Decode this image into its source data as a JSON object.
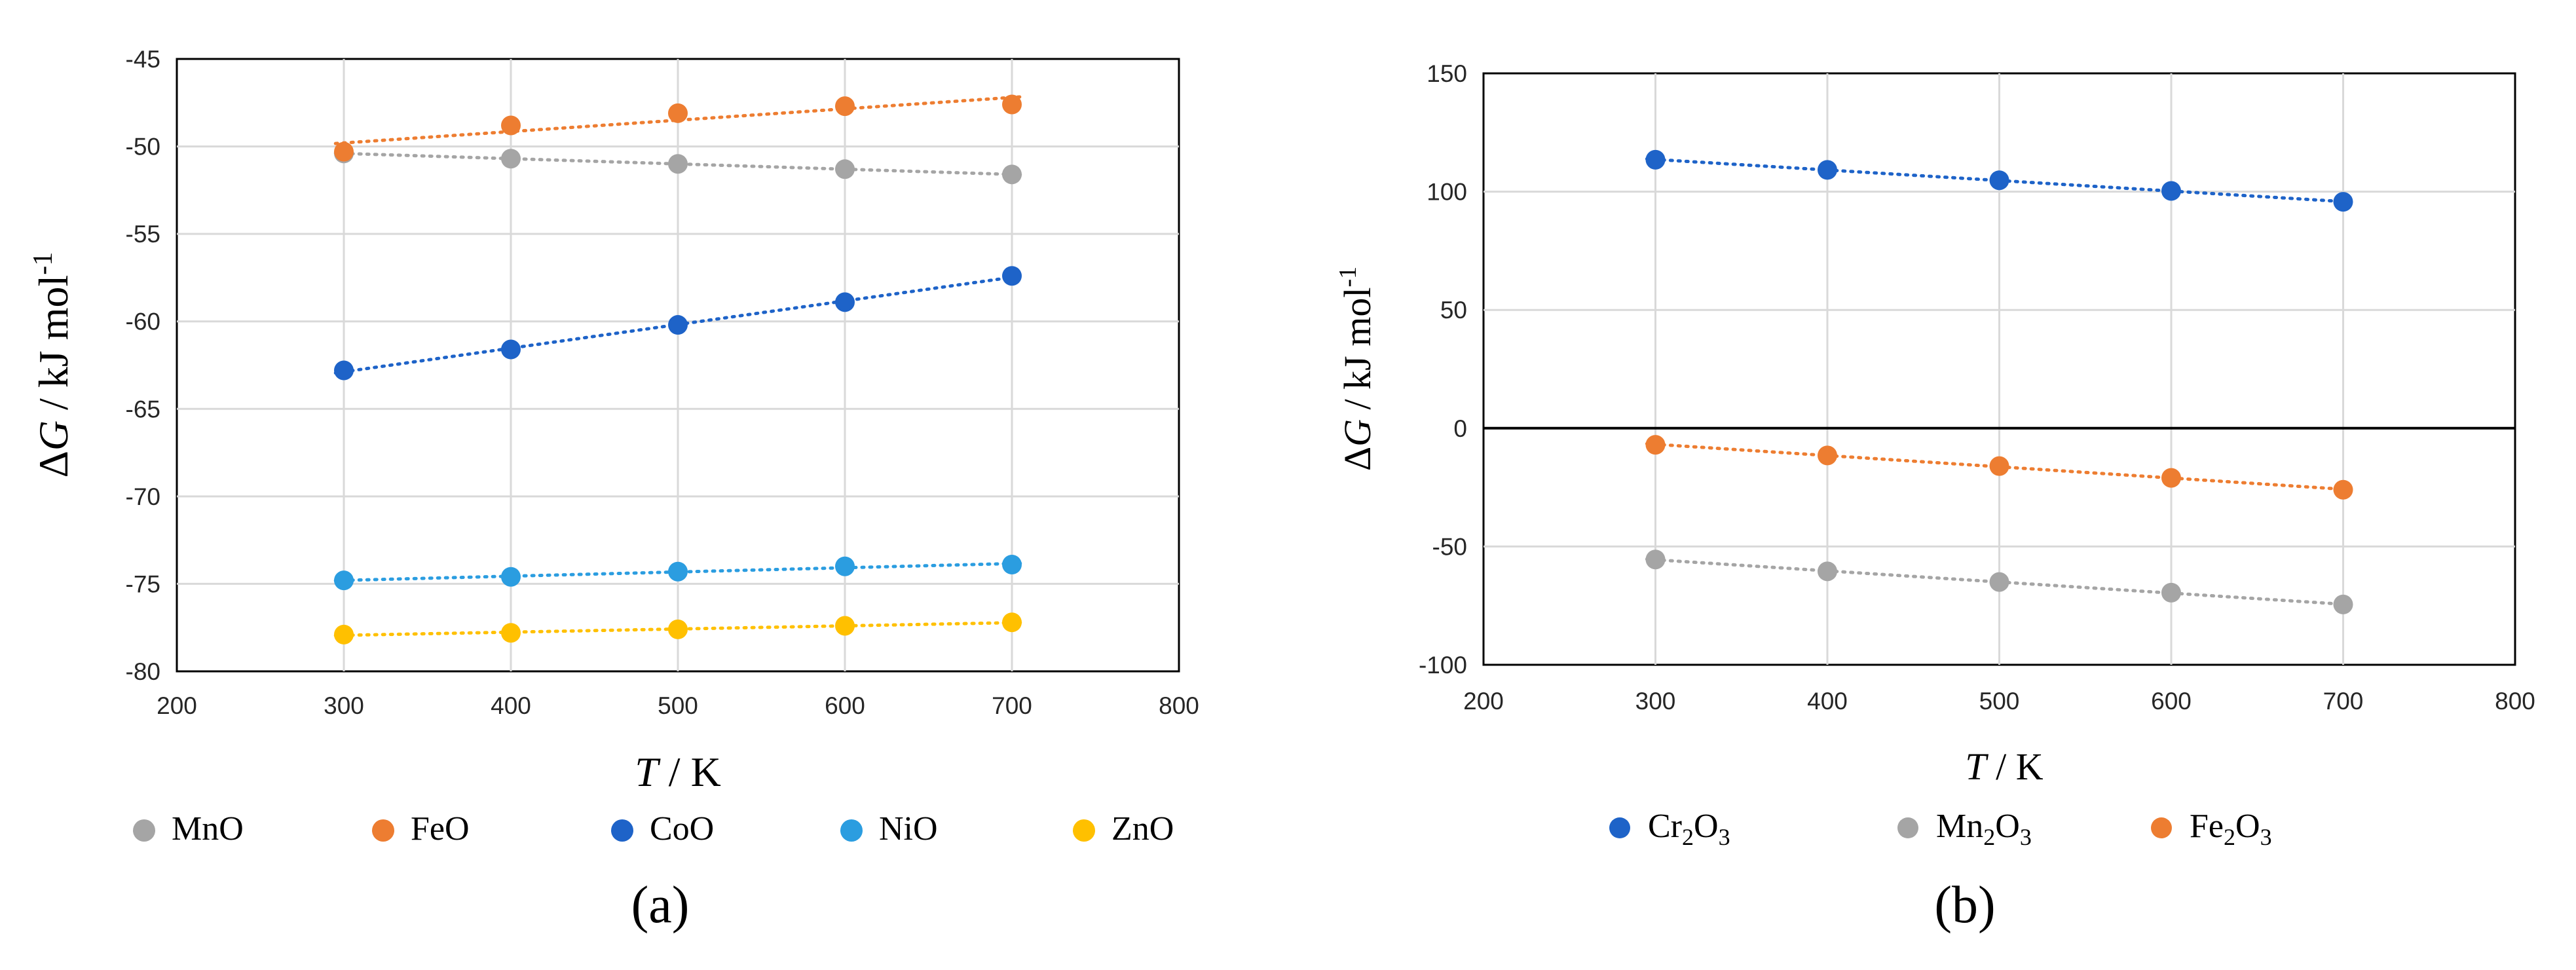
{
  "chart_data": [
    {
      "type": "scatter",
      "panel_label": "(a)",
      "xlabel": "T / K",
      "xlabel_italic": "T",
      "xlabel_rest": " / K",
      "ylabel": "ΔG / kJ mol-1",
      "ylabel_prefix": "Δ",
      "ylabel_italic": "G",
      "ylabel_rest": " / kJ mol",
      "ylabel_sup": "-1",
      "xlim": [
        200,
        800
      ],
      "ylim": [
        -80,
        -45
      ],
      "x_ticks": [
        "200",
        "300",
        "400",
        "500",
        "600",
        "700",
        "800"
      ],
      "y_ticks": [
        "-45",
        "-50",
        "-55",
        "-60",
        "-65",
        "-70",
        "-75",
        "-80"
      ],
      "grid": true,
      "trendlines": true,
      "legend_position": "bottom",
      "series": [
        {
          "name": "MnO",
          "base": "MnO",
          "color": "#a5a5a5",
          "x": [
            300,
            400,
            500,
            600,
            700
          ],
          "values": [
            -50.4,
            -50.7,
            -51.0,
            -51.3,
            -51.6
          ]
        },
        {
          "name": "FeO",
          "base": "FeO",
          "color": "#ed7d31",
          "x": [
            300,
            400,
            500,
            600,
            700
          ],
          "values": [
            -50.3,
            -48.8,
            -48.1,
            -47.7,
            -47.6
          ]
        },
        {
          "name": "CoO",
          "base": "CoO",
          "color": "#1e63c8",
          "x": [
            300,
            400,
            500,
            600,
            700
          ],
          "values": [
            -62.8,
            -61.6,
            -60.2,
            -58.9,
            -57.4
          ]
        },
        {
          "name": "NiO",
          "base": "NiO",
          "color": "#2b9de0",
          "x": [
            300,
            400,
            500,
            600,
            700
          ],
          "values": [
            -74.8,
            -74.6,
            -74.3,
            -74.0,
            -73.9
          ]
        },
        {
          "name": "ZnO",
          "base": "ZnO",
          "color": "#ffc000",
          "x": [
            300,
            400,
            500,
            600,
            700
          ],
          "values": [
            -77.9,
            -77.8,
            -77.6,
            -77.4,
            -77.2
          ]
        }
      ]
    },
    {
      "type": "scatter",
      "panel_label": "(b)",
      "xlabel": "T / K",
      "xlabel_italic": "T",
      "xlabel_rest": " / K",
      "ylabel": "ΔG / kJ mol-1",
      "ylabel_prefix": "Δ",
      "ylabel_italic": "G",
      "ylabel_rest": " / kJ mol",
      "ylabel_sup": "-1",
      "xlim": [
        200,
        800
      ],
      "ylim": [
        -100,
        150
      ],
      "x_ticks": [
        "200",
        "300",
        "400",
        "500",
        "600",
        "700",
        "800"
      ],
      "y_ticks": [
        "150",
        "100",
        "50",
        "0",
        "-50",
        "-100"
      ],
      "zero_line": true,
      "grid": true,
      "trendlines": true,
      "legend_position": "bottom",
      "series": [
        {
          "name": "Cr2O3",
          "base": "Cr",
          "sub1": "2",
          "mid": "O",
          "sub2": "3",
          "color": "#1e63c8",
          "x": [
            300,
            400,
            500,
            600,
            700
          ],
          "values": [
            113.5,
            109.2,
            104.8,
            100.3,
            95.7
          ]
        },
        {
          "name": "Mn2O3",
          "base": "Mn",
          "sub1": "2",
          "mid": "O",
          "sub2": "3",
          "color": "#a5a5a5",
          "x": [
            300,
            400,
            500,
            600,
            700
          ],
          "values": [
            -55.5,
            -60.5,
            -65.0,
            -69.5,
            -74.5
          ]
        },
        {
          "name": "Fe2O3",
          "base": "Fe",
          "sub1": "2",
          "mid": "O",
          "sub2": "3",
          "color": "#ed7d31",
          "x": [
            300,
            400,
            500,
            600,
            700
          ],
          "values": [
            -7.0,
            -11.5,
            -16.0,
            -21.0,
            -26.0
          ]
        }
      ]
    }
  ]
}
